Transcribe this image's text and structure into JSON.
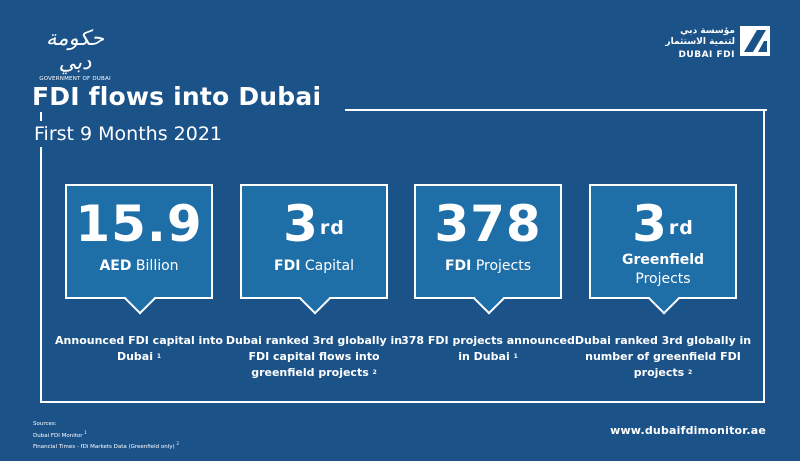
{
  "gov": {
    "script": "حكومة دبي",
    "name": "GOVERNMENT OF DUBAI"
  },
  "fdi_logo": {
    "arabic_line1": "مؤسسة دبي",
    "arabic_line2": "لتنمية الاستثمار",
    "english": "DUBAI FDI"
  },
  "title": "FDI flows into Dubai",
  "subtitle": "First 9 Months 2021",
  "stats": [
    {
      "value": "15.9",
      "label_bold": "AED",
      "label": " Billion",
      "desc": "Announced FDI capital into Dubai",
      "ref": "1"
    },
    {
      "value": "3",
      "suffix": "rd",
      "label_bold": "FDI",
      "label": " Capital",
      "desc": "Dubai ranked 3rd globally in FDI capital flows into greenfield projects",
      "ref": "2"
    },
    {
      "value": "378",
      "label_bold": "FDI",
      "label": " Projects",
      "desc": "378 FDI projects announced in Dubai",
      "ref": "1"
    },
    {
      "value": "3",
      "suffix": "rd",
      "label_bold": "Greenfield",
      "label2": "Projects",
      "desc": "Dubai ranked 3rd globally in number of greenfield FDI projects",
      "ref": "2"
    }
  ],
  "sources": {
    "heading": "Sources:",
    "line1": "Dubai FDI Monitor",
    "line1_ref": "1",
    "line2": "Financial Times - fDi Markets Data (Greenfield only)",
    "line2_ref": "2"
  },
  "website": "www.dubaifdimonitor.ae",
  "colors": {
    "background": "#1b5288",
    "card": "#1e6ea8",
    "text": "#ffffff"
  }
}
